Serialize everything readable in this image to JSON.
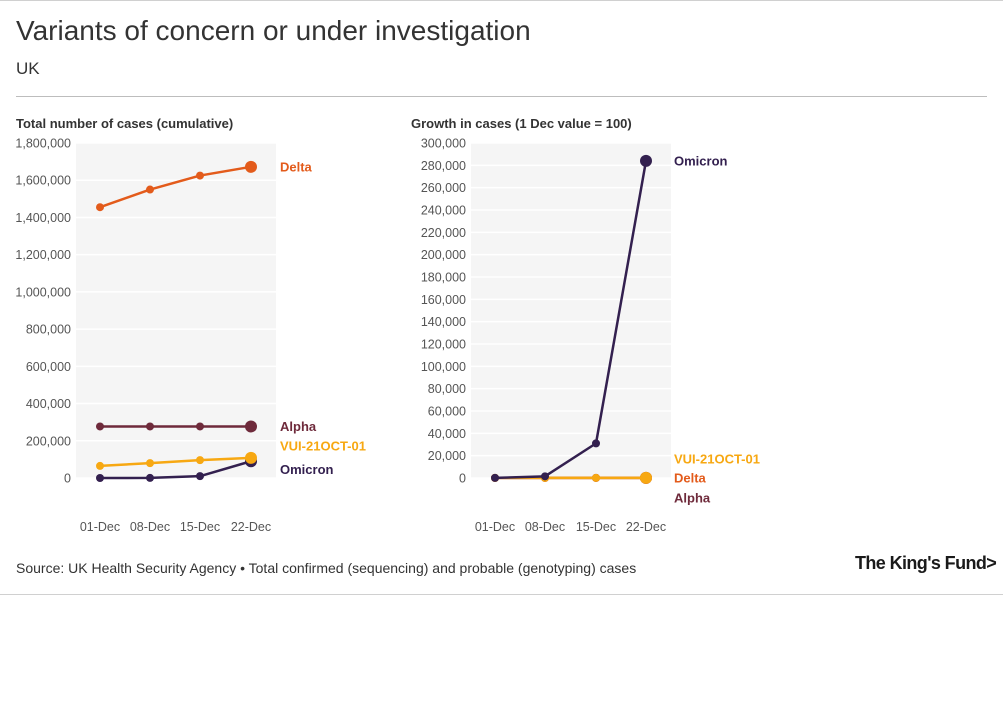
{
  "header": {
    "title": "Variants of concern or under investigation",
    "subtitle": "UK"
  },
  "footer": {
    "source": "Source: UK Health Security Agency • Total confirmed (sequencing) and probable (genotyping) cases",
    "logo": "The King's Fund>"
  },
  "colors": {
    "delta": "#e35b1b",
    "alpha": "#6e2a3b",
    "vui": "#f7a812",
    "omicron": "#33204f",
    "plot_bg": "#f5f5f5",
    "grid": "#ffffff"
  },
  "chart_data": [
    {
      "type": "line",
      "title": "Total number of cases (cumulative)",
      "categories": [
        "01-Dec",
        "08-Dec",
        "15-Dec",
        "22-Dec"
      ],
      "ylim": [
        0,
        1800000
      ],
      "yticks": [
        0,
        200000,
        400000,
        600000,
        800000,
        1000000,
        1200000,
        1400000,
        1600000,
        1800000
      ],
      "ytick_labels": [
        "0",
        "200,000",
        "400,000",
        "600,000",
        "800,000",
        "1,000,000",
        "1,200,000",
        "1,400,000",
        "1,600,000",
        "1,800,000"
      ],
      "series": [
        {
          "name": "Delta",
          "key": "delta",
          "values": [
            1455000,
            1550000,
            1625000,
            1672000
          ]
        },
        {
          "name": "Alpha",
          "key": "alpha",
          "values": [
            277000,
            277000,
            277000,
            277000
          ]
        },
        {
          "name": "VUI-21OCT-01",
          "key": "vui",
          "values": [
            65000,
            80000,
            96000,
            108000
          ]
        },
        {
          "name": "Omicron",
          "key": "omicron",
          "values": [
            0,
            500,
            10000,
            90000
          ]
        }
      ]
    },
    {
      "type": "line",
      "title": "Growth in cases (1 Dec value = 100)",
      "categories": [
        "01-Dec",
        "08-Dec",
        "15-Dec",
        "22-Dec"
      ],
      "ylim": [
        0,
        300000
      ],
      "yticks": [
        0,
        20000,
        40000,
        60000,
        80000,
        100000,
        120000,
        140000,
        160000,
        180000,
        200000,
        220000,
        240000,
        260000,
        280000,
        300000
      ],
      "ytick_labels": [
        "0",
        "20,000",
        "40,000",
        "60,000",
        "80,000",
        "100,000",
        "120,000",
        "140,000",
        "160,000",
        "180,000",
        "200,000",
        "220,000",
        "240,000",
        "260,000",
        "280,000",
        "300,000"
      ],
      "series": [
        {
          "name": "Omicron",
          "key": "omicron",
          "values": [
            100,
            1500,
            31000,
            284000
          ]
        },
        {
          "name": "VUI-21OCT-01",
          "key": "vui",
          "values": [
            100,
            125,
            148,
            166
          ]
        },
        {
          "name": "Delta",
          "key": "delta",
          "values": [
            100,
            107,
            112,
            115
          ]
        },
        {
          "name": "Alpha",
          "key": "alpha",
          "values": [
            100,
            100,
            100,
            100
          ]
        }
      ]
    }
  ]
}
